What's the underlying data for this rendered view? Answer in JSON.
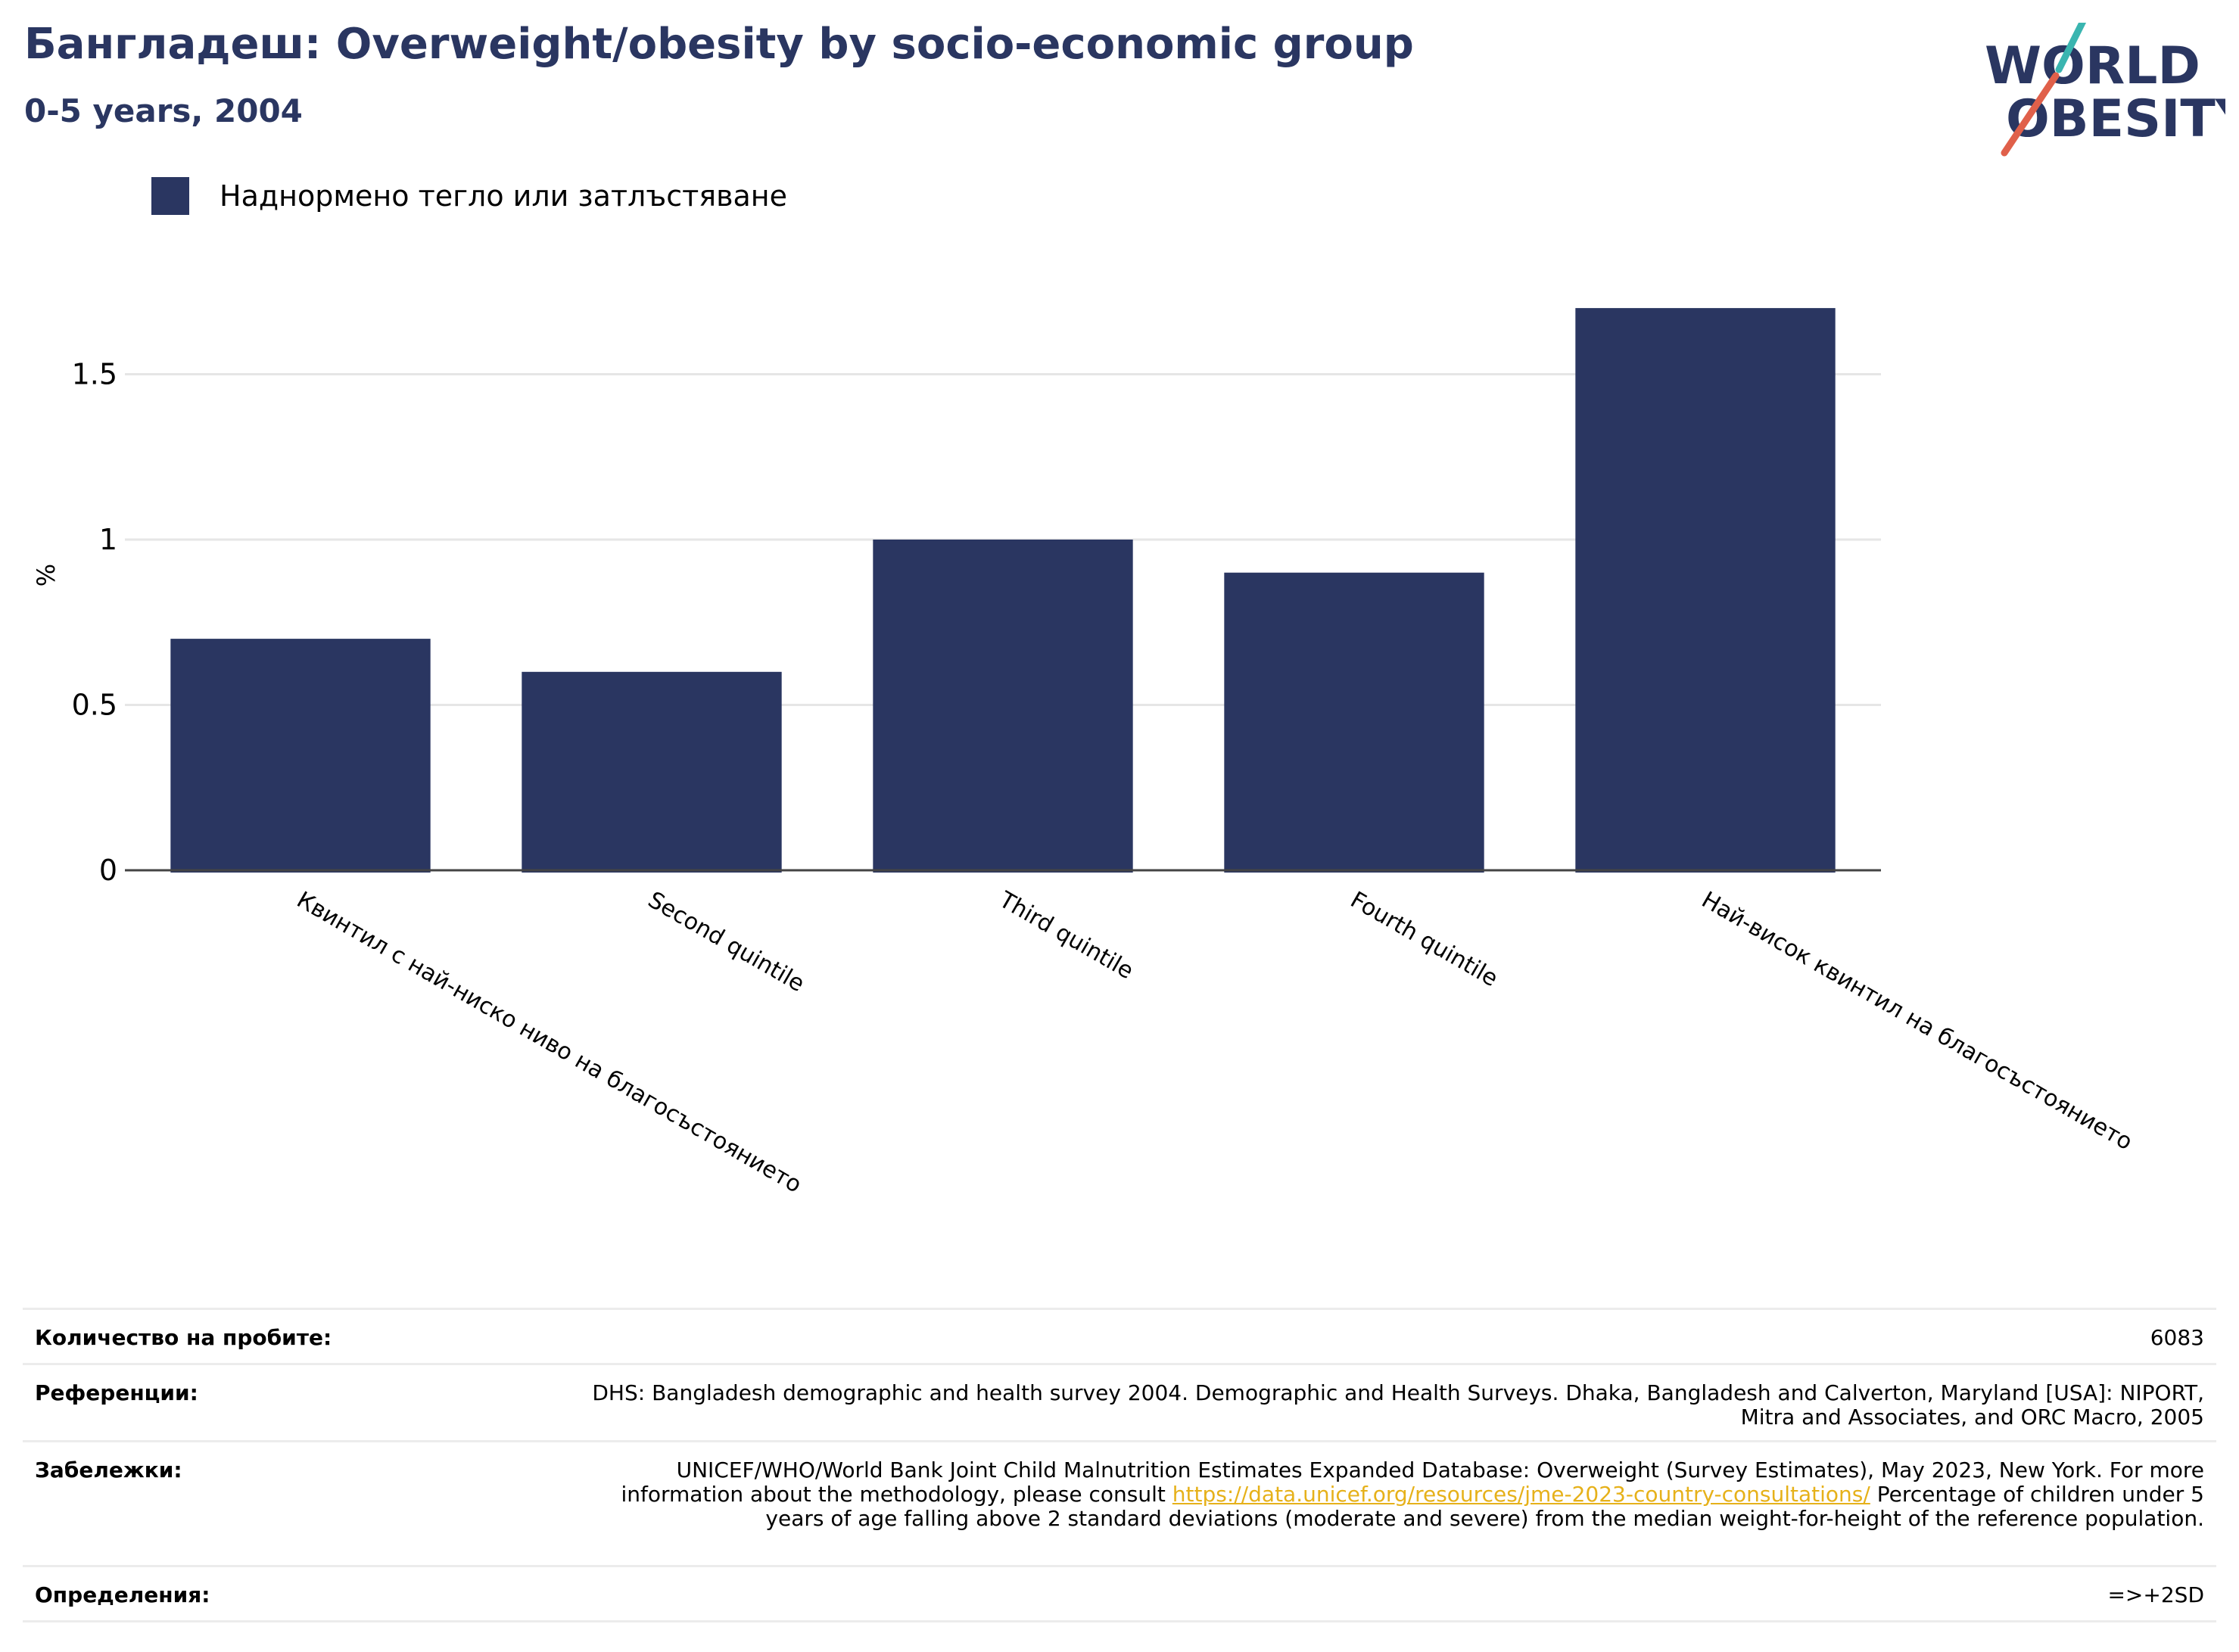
{
  "header": {
    "title": "Бангладеш: Overweight/obesity by socio-economic group",
    "subtitle": "0-5 years, 2004"
  },
  "logo": {
    "line1": "WORLD",
    "line2": "OBESITY"
  },
  "colors": {
    "bar": "#2a3661",
    "title": "#2a3661",
    "link": "#e6b11a",
    "logo_teal": "#3ab5b0",
    "logo_red": "#e0604a"
  },
  "chart_data": {
    "type": "bar",
    "categories": [
      "Квинтил с най-ниско ниво на благосъстоянието",
      "Second quintile",
      "Third quintile",
      "Fourth quintile",
      "Най-висок квинтил на благосъстоянието"
    ],
    "series": [
      {
        "name": "Наднормено тегло или затлъстяване",
        "values": [
          0.7,
          0.6,
          1.0,
          0.9,
          1.7
        ]
      }
    ],
    "ylabel": "%",
    "yticks": [
      0,
      0.5,
      1,
      1.5
    ],
    "ytick_labels": [
      "0",
      "0.5",
      "1",
      "1.5"
    ],
    "ylim": [
      0,
      1.85
    ],
    "grid": true,
    "legend_position": "top-left"
  },
  "meta": {
    "samples_label": "Количество на пробите:",
    "samples_value": "6083",
    "references_label": "Референции:",
    "references_value": "DHS: Bangladesh demographic and health survey 2004. Demographic and Health Surveys. Dhaka, Bangladesh and Calverton, Maryland [USA]: NIPORT, Mitra and Associates, and ORC Macro, 2005",
    "notes_label": "Забележки:",
    "notes_text1": "UNICEF/WHO/World Bank Joint Child Malnutrition Estimates Expanded Database: Overweight (Survey Estimates), May 2023, New York. For more information about the methodology, please consult",
    "notes_link": "https://data.unicef.org/resources/jme-2023-country-consultations/",
    "notes_text2": "Percentage of children under 5 years of age falling above 2 standard deviations (moderate and severe) from the median weight-for-height of the reference population.",
    "definitions_label": "Определения:",
    "definitions_value": "=>+2SD"
  }
}
